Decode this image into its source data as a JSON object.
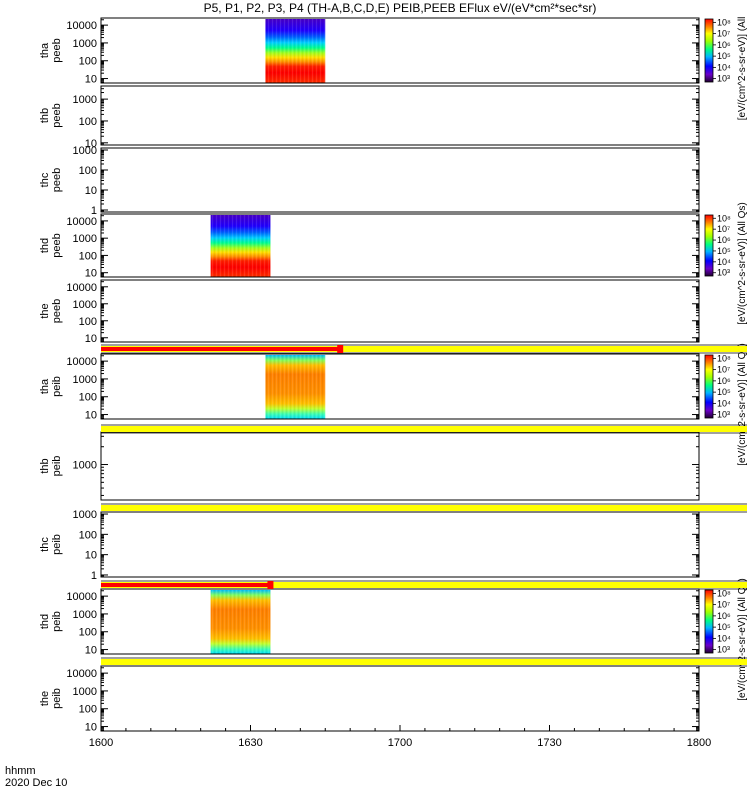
{
  "title": "P5, P1, P2, P3, P4 (TH-A,B,C,D,E) PEIB,PEEB EFlux eV/(eV*cm²*sec*sr)",
  "x_axis": {
    "label_line1": "hhmm",
    "label_line2": "2020 Dec 10",
    "ticks": [
      "1600",
      "1630",
      "1700",
      "1730",
      "1800"
    ]
  },
  "colorbar_label_full": "[eV/(cm^2-s-sr-eV)] (All Qs)",
  "colorbar_label_short": "[eV/(cm^2-s-sr-eV)] (All",
  "colors": {
    "yellow": "#ffff00",
    "red": "#ff0000",
    "axis": "#000000"
  },
  "chart_data": {
    "type": "heatmap",
    "x_range_hhmm": [
      "1600",
      "1800"
    ],
    "panels": [
      {
        "id": "tha-peeb",
        "label": [
          "tha",
          "peeb"
        ],
        "yticks": [
          "10",
          "100",
          "1000",
          "10000"
        ],
        "ylog": [
          0.75,
          4.4
        ],
        "data_x": [
          "1633",
          "1645"
        ],
        "spectrum": "electron",
        "colorbar": [
          "10³",
          "10⁴",
          "10⁵",
          "10⁶",
          "10⁷",
          "10⁸"
        ],
        "cb_side": "full"
      },
      {
        "id": "thb-peeb",
        "label": [
          "thb",
          "peeb"
        ],
        "yticks": [
          "10",
          "100",
          "1000"
        ],
        "ylog": [
          0.9,
          3.6
        ],
        "cb_side": "full-long"
      },
      {
        "id": "thc-peeb",
        "label": [
          "thc",
          "peeb"
        ],
        "yticks": [
          "1",
          "10",
          "100",
          "1000"
        ],
        "ylog": [
          -0.1,
          3.1
        ]
      },
      {
        "id": "thd-peeb",
        "label": [
          "thd",
          "peeb"
        ],
        "yticks": [
          "10",
          "100",
          "1000",
          "10000"
        ],
        "ylog": [
          0.75,
          4.4
        ],
        "data_x": [
          "1622",
          "1634"
        ],
        "spectrum": "electron",
        "colorbar": [
          "10³",
          "10⁴",
          "10⁵",
          "10⁶",
          "10⁷",
          "10⁸"
        ]
      },
      {
        "id": "the-peeb",
        "label": [
          "the",
          "peeb"
        ],
        "yticks": [
          "10",
          "100",
          "1000",
          "10000"
        ],
        "ylog": [
          0.75,
          4.4
        ]
      },
      {
        "id": "tha-peib",
        "label": [
          "tha",
          "peib"
        ],
        "yticks": [
          "10",
          "100",
          "1000",
          "10000"
        ],
        "ylog": [
          0.75,
          4.4
        ],
        "data_x": [
          "1633",
          "1645"
        ],
        "spectrum": "ion",
        "colorbar": [
          "10³",
          "10⁴",
          "10⁵",
          "10⁶",
          "10⁷",
          "10⁸"
        ]
      },
      {
        "id": "thb-peib",
        "label": [
          "thb",
          "peib"
        ],
        "yticks": [
          "1000"
        ],
        "ylog": [
          2.4,
          3.55
        ]
      },
      {
        "id": "thc-peib",
        "label": [
          "thc",
          "peib"
        ],
        "yticks": [
          "1",
          "10",
          "100",
          "1000"
        ],
        "ylog": [
          -0.1,
          3.1
        ]
      },
      {
        "id": "thd-peib",
        "label": [
          "thd",
          "peib"
        ],
        "yticks": [
          "10",
          "100",
          "1000",
          "10000"
        ],
        "ylog": [
          0.75,
          4.4
        ],
        "data_x": [
          "1622",
          "1634"
        ],
        "spectrum": "ion",
        "colorbar": [
          "10³",
          "10⁴",
          "10⁵",
          "10⁶",
          "10⁷",
          "10⁸"
        ]
      },
      {
        "id": "the-peib",
        "label": [
          "the",
          "peib"
        ],
        "yticks": [
          "10",
          "100",
          "1000",
          "10000"
        ],
        "ylog": [
          0.75,
          4.4
        ]
      }
    ],
    "status_bars": [
      {
        "after_panel": 4,
        "color": "yellow",
        "red_until": "1648"
      },
      {
        "after_panel": 5,
        "color": "yellow"
      },
      {
        "after_panel": 6,
        "color": "yellow"
      },
      {
        "after_panel": 7,
        "color": "yellow",
        "red_until": "1634"
      },
      {
        "after_panel": 8,
        "color": "yellow"
      }
    ]
  }
}
